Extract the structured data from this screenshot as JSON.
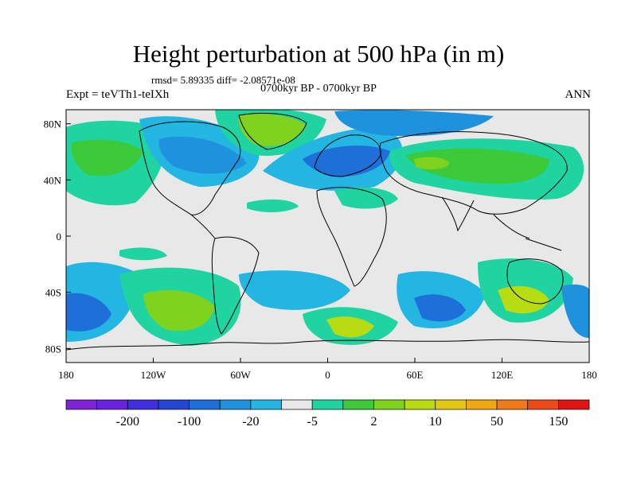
{
  "title": "Height perturbation at 500 hPa (in m)",
  "stats": "rmsd= 5.89335 diff= -2.08571e-08",
  "subtitle": "0700kyr BP - 0700kyr BP",
  "experiment": "Expt = teVTh1-teIXh",
  "season": "ANN",
  "colors": {
    "background_band": "#e8e8e8",
    "land_line": "#000000"
  },
  "map": {
    "lon_range": [
      -180,
      180
    ],
    "lat_range": [
      -90,
      90
    ],
    "x_ticks": [
      {
        "lon": -180,
        "label": "180"
      },
      {
        "lon": -120,
        "label": "120W"
      },
      {
        "lon": -60,
        "label": "60W"
      },
      {
        "lon": 0,
        "label": "0"
      },
      {
        "lon": 60,
        "label": "60E"
      },
      {
        "lon": 120,
        "label": "120E"
      },
      {
        "lon": 180,
        "label": "180"
      }
    ],
    "y_ticks": [
      {
        "lat": 80,
        "label": "80N"
      },
      {
        "lat": 40,
        "label": "40N"
      },
      {
        "lat": 0,
        "label": "0"
      },
      {
        "lat": -40,
        "label": "40S"
      },
      {
        "lat": -80,
        "label": "80S"
      }
    ]
  },
  "colorbar": {
    "colors": [
      "#7e22d6",
      "#6a22e0",
      "#3f2fe0",
      "#2446d4",
      "#1e6fd8",
      "#1e92dc",
      "#23b6e3",
      "#e8e8e8",
      "#1fd4a0",
      "#3cc93a",
      "#7fd21e",
      "#b8dc12",
      "#e2c812",
      "#f0a812",
      "#f07a18",
      "#ec4a1a",
      "#e01414"
    ],
    "labels": [
      {
        "after_index": 1,
        "text": "-200"
      },
      {
        "after_index": 3,
        "text": "-100"
      },
      {
        "after_index": 5,
        "text": "-20"
      },
      {
        "after_index": 7,
        "text": "-5"
      },
      {
        "after_index": 9,
        "text": "2"
      },
      {
        "after_index": 11,
        "text": "10"
      },
      {
        "after_index": 13,
        "text": "50"
      },
      {
        "after_index": 15,
        "text": "150"
      }
    ]
  }
}
